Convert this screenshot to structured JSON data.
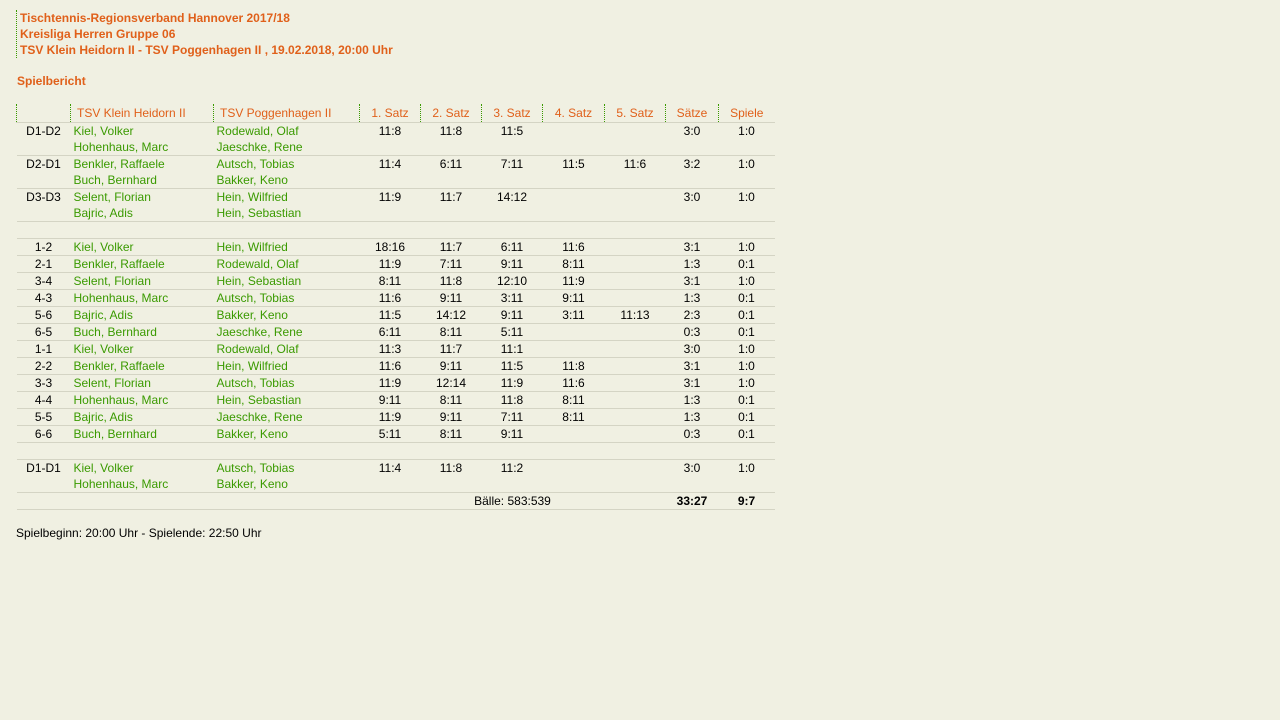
{
  "header": {
    "lines": [
      "Tischtennis-Regionsverband Hannover 2017/18",
      "Kreisliga Herren Gruppe 06",
      "TSV Klein Heidorn II - TSV Poggenhagen II , 19.02.2018, 20:00 Uhr"
    ]
  },
  "section_title": "Spielbericht",
  "columns": [
    "",
    "TSV Klein Heidorn II",
    "TSV Poggenhagen II",
    "1. Satz",
    "2. Satz",
    "3. Satz",
    "4. Satz",
    "5. Satz",
    "Sätze",
    "Spiele"
  ],
  "blocks": [
    [
      {
        "pair": "D1-D2",
        "home": [
          "Kiel, Volker",
          "Hohenhaus, Marc"
        ],
        "guest": [
          "Rodewald, Olaf",
          "Jaeschke, Rene"
        ],
        "sets": [
          "11:8",
          "11:8",
          "11:5",
          "",
          ""
        ],
        "saetze": "3:0",
        "spiele": "1:0"
      },
      {
        "pair": "D2-D1",
        "home": [
          "Benkler, Raffaele",
          "Buch, Bernhard"
        ],
        "guest": [
          "Autsch, Tobias",
          "Bakker, Keno"
        ],
        "sets": [
          "11:4",
          "6:11",
          "7:11",
          "11:5",
          "11:6"
        ],
        "saetze": "3:2",
        "spiele": "1:0"
      },
      {
        "pair": "D3-D3",
        "home": [
          "Selent, Florian",
          "Bajric, Adis"
        ],
        "guest": [
          "Hein, Wilfried",
          "Hein, Sebastian"
        ],
        "sets": [
          "11:9",
          "11:7",
          "14:12",
          "",
          ""
        ],
        "saetze": "3:0",
        "spiele": "1:0"
      }
    ],
    [
      {
        "pair": "1-2",
        "home": [
          "Kiel, Volker"
        ],
        "guest": [
          "Hein, Wilfried"
        ],
        "sets": [
          "18:16",
          "11:7",
          "6:11",
          "11:6",
          ""
        ],
        "saetze": "3:1",
        "spiele": "1:0"
      },
      {
        "pair": "2-1",
        "home": [
          "Benkler, Raffaele"
        ],
        "guest": [
          "Rodewald, Olaf"
        ],
        "sets": [
          "11:9",
          "7:11",
          "9:11",
          "8:11",
          ""
        ],
        "saetze": "1:3",
        "spiele": "0:1"
      },
      {
        "pair": "3-4",
        "home": [
          "Selent, Florian"
        ],
        "guest": [
          "Hein, Sebastian"
        ],
        "sets": [
          "8:11",
          "11:8",
          "12:10",
          "11:9",
          ""
        ],
        "saetze": "3:1",
        "spiele": "1:0"
      },
      {
        "pair": "4-3",
        "home": [
          "Hohenhaus, Marc"
        ],
        "guest": [
          "Autsch, Tobias"
        ],
        "sets": [
          "11:6",
          "9:11",
          "3:11",
          "9:11",
          ""
        ],
        "saetze": "1:3",
        "spiele": "0:1"
      },
      {
        "pair": "5-6",
        "home": [
          "Bajric, Adis"
        ],
        "guest": [
          "Bakker, Keno"
        ],
        "sets": [
          "11:5",
          "14:12",
          "9:11",
          "3:11",
          "11:13"
        ],
        "saetze": "2:3",
        "spiele": "0:1"
      },
      {
        "pair": "6-5",
        "home": [
          "Buch, Bernhard"
        ],
        "guest": [
          "Jaeschke, Rene"
        ],
        "sets": [
          "6:11",
          "8:11",
          "5:11",
          "",
          ""
        ],
        "saetze": "0:3",
        "spiele": "0:1"
      },
      {
        "pair": "1-1",
        "home": [
          "Kiel, Volker"
        ],
        "guest": [
          "Rodewald, Olaf"
        ],
        "sets": [
          "11:3",
          "11:7",
          "11:1",
          "",
          ""
        ],
        "saetze": "3:0",
        "spiele": "1:0"
      },
      {
        "pair": "2-2",
        "home": [
          "Benkler, Raffaele"
        ],
        "guest": [
          "Hein, Wilfried"
        ],
        "sets": [
          "11:6",
          "9:11",
          "11:5",
          "11:8",
          ""
        ],
        "saetze": "3:1",
        "spiele": "1:0"
      },
      {
        "pair": "3-3",
        "home": [
          "Selent, Florian"
        ],
        "guest": [
          "Autsch, Tobias"
        ],
        "sets": [
          "11:9",
          "12:14",
          "11:9",
          "11:6",
          ""
        ],
        "saetze": "3:1",
        "spiele": "1:0"
      },
      {
        "pair": "4-4",
        "home": [
          "Hohenhaus, Marc"
        ],
        "guest": [
          "Hein, Sebastian"
        ],
        "sets": [
          "9:11",
          "8:11",
          "11:8",
          "8:11",
          ""
        ],
        "saetze": "1:3",
        "spiele": "0:1"
      },
      {
        "pair": "5-5",
        "home": [
          "Bajric, Adis"
        ],
        "guest": [
          "Jaeschke, Rene"
        ],
        "sets": [
          "11:9",
          "9:11",
          "7:11",
          "8:11",
          ""
        ],
        "saetze": "1:3",
        "spiele": "0:1"
      },
      {
        "pair": "6-6",
        "home": [
          "Buch, Bernhard"
        ],
        "guest": [
          "Bakker, Keno"
        ],
        "sets": [
          "5:11",
          "8:11",
          "9:11",
          "",
          ""
        ],
        "saetze": "0:3",
        "spiele": "0:1"
      }
    ],
    [
      {
        "pair": "D1-D1",
        "home": [
          "Kiel, Volker",
          "Hohenhaus, Marc"
        ],
        "guest": [
          "Autsch, Tobias",
          "Bakker, Keno"
        ],
        "sets": [
          "11:4",
          "11:8",
          "11:2",
          "",
          ""
        ],
        "saetze": "3:0",
        "spiele": "1:0"
      }
    ]
  ],
  "totals": {
    "balls": "Bälle: 583:539",
    "saetze": "33:27",
    "spiele": "9:7"
  },
  "footer": "Spielbeginn: 20:00 Uhr - Spielende: 22:50 Uhr",
  "colors": {
    "orange": "#e0601a",
    "green": "#3a9a00",
    "background": "#f0f0e2"
  }
}
